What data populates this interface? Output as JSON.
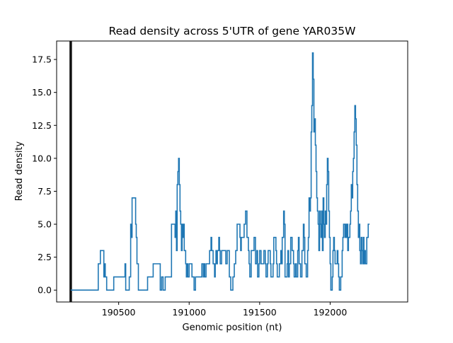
{
  "chart_data": {
    "type": "line",
    "title": "Read density across 5'UTR of gene YAR035W",
    "xlabel": "Genomic position (nt)",
    "ylabel": "Read density",
    "xlim": [
      190060,
      192550
    ],
    "ylim": [
      -0.9,
      18.9
    ],
    "xticks": [
      190500,
      191000,
      191500,
      192000
    ],
    "yticks": [
      0.0,
      2.5,
      5.0,
      7.5,
      10.0,
      12.5,
      15.0,
      17.5
    ],
    "xtick_labels": [
      "190500",
      "191000",
      "191500",
      "192000"
    ],
    "ytick_labels": [
      "0.0",
      "2.5",
      "5.0",
      "7.5",
      "10.0",
      "12.5",
      "15.0",
      "17.5"
    ],
    "grid": false,
    "legend": "none",
    "vline": {
      "x": 190160,
      "color": "#111111"
    },
    "series": [
      {
        "color": "#1f77b4",
        "step": true,
        "points": [
          [
            190160,
            0
          ],
          [
            190350,
            0
          ],
          [
            190355,
            2
          ],
          [
            190370,
            3
          ],
          [
            190395,
            1
          ],
          [
            190400,
            2
          ],
          [
            190405,
            1
          ],
          [
            190415,
            0
          ],
          [
            190460,
            0
          ],
          [
            190465,
            1
          ],
          [
            190480,
            1
          ],
          [
            190540,
            1
          ],
          [
            190545,
            2
          ],
          [
            190550,
            0
          ],
          [
            190575,
            1
          ],
          [
            190585,
            5
          ],
          [
            190590,
            4
          ],
          [
            190595,
            7
          ],
          [
            190620,
            5
          ],
          [
            190625,
            4
          ],
          [
            190630,
            2
          ],
          [
            190640,
            0
          ],
          [
            190700,
            0
          ],
          [
            190705,
            1
          ],
          [
            190740,
            1
          ],
          [
            190745,
            2
          ],
          [
            190790,
            2
          ],
          [
            190795,
            0
          ],
          [
            190805,
            1
          ],
          [
            190815,
            0
          ],
          [
            190830,
            1
          ],
          [
            190840,
            1
          ],
          [
            190875,
            5
          ],
          [
            190900,
            4
          ],
          [
            190905,
            6
          ],
          [
            190910,
            3
          ],
          [
            190915,
            8
          ],
          [
            190920,
            9
          ],
          [
            190925,
            10
          ],
          [
            190930,
            8
          ],
          [
            190935,
            6
          ],
          [
            190940,
            5
          ],
          [
            190945,
            3
          ],
          [
            190950,
            5
          ],
          [
            190955,
            4
          ],
          [
            190960,
            5
          ],
          [
            190965,
            3
          ],
          [
            190975,
            2
          ],
          [
            190980,
            1
          ],
          [
            190985,
            2
          ],
          [
            190990,
            1
          ],
          [
            191000,
            2
          ],
          [
            191015,
            2
          ],
          [
            191020,
            1
          ],
          [
            191035,
            0
          ],
          [
            191045,
            1
          ],
          [
            191080,
            1
          ],
          [
            191090,
            2
          ],
          [
            191100,
            1
          ],
          [
            191105,
            2
          ],
          [
            191110,
            1
          ],
          [
            191120,
            2
          ],
          [
            191145,
            3
          ],
          [
            191155,
            4
          ],
          [
            191160,
            3
          ],
          [
            191170,
            2
          ],
          [
            191180,
            1
          ],
          [
            191185,
            2
          ],
          [
            191190,
            3
          ],
          [
            191195,
            2
          ],
          [
            191200,
            3
          ],
          [
            191210,
            4
          ],
          [
            191215,
            3
          ],
          [
            191220,
            2
          ],
          [
            191230,
            3
          ],
          [
            191260,
            2
          ],
          [
            191270,
            3
          ],
          [
            191285,
            1
          ],
          [
            191295,
            0
          ],
          [
            191310,
            1
          ],
          [
            191320,
            2
          ],
          [
            191330,
            3
          ],
          [
            191340,
            5
          ],
          [
            191360,
            4
          ],
          [
            191365,
            3
          ],
          [
            191370,
            4
          ],
          [
            191390,
            5
          ],
          [
            191400,
            6
          ],
          [
            191410,
            4
          ],
          [
            191420,
            3
          ],
          [
            191425,
            2
          ],
          [
            191430,
            1
          ],
          [
            191440,
            3
          ],
          [
            191460,
            4
          ],
          [
            191470,
            2
          ],
          [
            191480,
            3
          ],
          [
            191485,
            1
          ],
          [
            191495,
            2
          ],
          [
            191500,
            3
          ],
          [
            191510,
            2
          ],
          [
            191530,
            3
          ],
          [
            191540,
            2
          ],
          [
            191545,
            1
          ],
          [
            191555,
            2
          ],
          [
            191560,
            3
          ],
          [
            191575,
            2
          ],
          [
            191580,
            1
          ],
          [
            191595,
            2
          ],
          [
            191600,
            4
          ],
          [
            191615,
            3
          ],
          [
            191620,
            2
          ],
          [
            191625,
            1
          ],
          [
            191640,
            2
          ],
          [
            191650,
            3
          ],
          [
            191655,
            2
          ],
          [
            191660,
            4
          ],
          [
            191670,
            6
          ],
          [
            191675,
            5
          ],
          [
            191680,
            1
          ],
          [
            191695,
            2
          ],
          [
            191700,
            3
          ],
          [
            191705,
            1
          ],
          [
            191710,
            2
          ],
          [
            191720,
            4
          ],
          [
            191730,
            3
          ],
          [
            191740,
            2
          ],
          [
            191745,
            1
          ],
          [
            191755,
            2
          ],
          [
            191760,
            1
          ],
          [
            191770,
            3
          ],
          [
            191775,
            4
          ],
          [
            191780,
            2
          ],
          [
            191790,
            1
          ],
          [
            191800,
            3
          ],
          [
            191810,
            5
          ],
          [
            191815,
            4
          ],
          [
            191820,
            2
          ],
          [
            191830,
            1
          ],
          [
            191840,
            3
          ],
          [
            191845,
            4
          ],
          [
            191850,
            7
          ],
          [
            191855,
            6
          ],
          [
            191860,
            7
          ],
          [
            191865,
            12
          ],
          [
            191870,
            14
          ],
          [
            191875,
            18
          ],
          [
            191880,
            16
          ],
          [
            191885,
            12
          ],
          [
            191890,
            13
          ],
          [
            191895,
            11
          ],
          [
            191900,
            9
          ],
          [
            191905,
            7
          ],
          [
            191910,
            6
          ],
          [
            191915,
            5
          ],
          [
            191920,
            3
          ],
          [
            191925,
            6
          ],
          [
            191930,
            5
          ],
          [
            191935,
            4
          ],
          [
            191940,
            6
          ],
          [
            191945,
            3
          ],
          [
            191950,
            7
          ],
          [
            191955,
            5
          ],
          [
            191960,
            4
          ],
          [
            191965,
            6
          ],
          [
            191970,
            5
          ],
          [
            191975,
            8
          ],
          [
            191980,
            10
          ],
          [
            191985,
            9
          ],
          [
            191990,
            6
          ],
          [
            191995,
            4
          ],
          [
            192000,
            2
          ],
          [
            192005,
            0
          ],
          [
            192015,
            1
          ],
          [
            192020,
            3
          ],
          [
            192025,
            4
          ],
          [
            192030,
            3
          ],
          [
            192035,
            2
          ],
          [
            192050,
            3
          ],
          [
            192055,
            2
          ],
          [
            192060,
            1
          ],
          [
            192065,
            0
          ],
          [
            192075,
            1
          ],
          [
            192085,
            3
          ],
          [
            192090,
            4
          ],
          [
            192095,
            5
          ],
          [
            192105,
            4
          ],
          [
            192110,
            5
          ],
          [
            192115,
            4
          ],
          [
            192120,
            5
          ],
          [
            192125,
            3
          ],
          [
            192130,
            4
          ],
          [
            192140,
            5
          ],
          [
            192145,
            6
          ],
          [
            192150,
            8
          ],
          [
            192155,
            7
          ],
          [
            192160,
            9
          ],
          [
            192165,
            10
          ],
          [
            192170,
            12
          ],
          [
            192175,
            14
          ],
          [
            192180,
            13
          ],
          [
            192185,
            11
          ],
          [
            192190,
            8
          ],
          [
            192195,
            6
          ],
          [
            192200,
            4
          ],
          [
            192205,
            5
          ],
          [
            192210,
            3
          ],
          [
            192215,
            2
          ],
          [
            192220,
            4
          ],
          [
            192225,
            3
          ],
          [
            192230,
            2
          ],
          [
            192235,
            4
          ],
          [
            192240,
            2
          ],
          [
            192245,
            3
          ],
          [
            192250,
            2
          ],
          [
            192260,
            4
          ],
          [
            192270,
            5
          ],
          [
            192280,
            5
          ]
        ]
      }
    ]
  }
}
